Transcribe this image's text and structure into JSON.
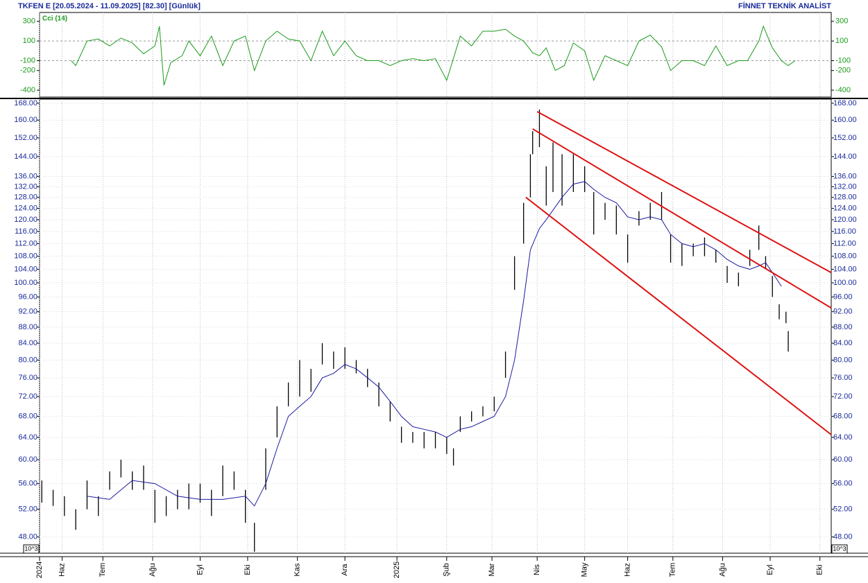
{
  "header": {
    "title": "TKFEN E  [20.05.2024 - 11.09.2025]  [82.30]  [Günlük]",
    "brand": "FİNNET TEKNİK ANALİST"
  },
  "chart_data": [
    {
      "type": "line",
      "title": "Cci (14)",
      "color": "#1a9a1a",
      "x": [
        14,
        16,
        21,
        26,
        31,
        36,
        41,
        46,
        51,
        53,
        55,
        58,
        63,
        66,
        71,
        76,
        81,
        86,
        91,
        95,
        100,
        105,
        110,
        115,
        120,
        125,
        130,
        135,
        140,
        145,
        150,
        155,
        160,
        165,
        170,
        175,
        180,
        186,
        191,
        196,
        201,
        206,
        210,
        214,
        218,
        221,
        224,
        228,
        232,
        236,
        241,
        245,
        250,
        255,
        260,
        265,
        270,
        275,
        279,
        284,
        289,
        294,
        299,
        304,
        309,
        313,
        318,
        320,
        324,
        328,
        331,
        334
      ],
      "values": [
        -100,
        -150,
        100,
        120,
        50,
        130,
        80,
        -30,
        50,
        250,
        -350,
        -120,
        -50,
        100,
        -50,
        150,
        -150,
        100,
        150,
        -200,
        100,
        200,
        120,
        100,
        -100,
        200,
        -50,
        100,
        -50,
        -100,
        -100,
        -150,
        -100,
        -80,
        -100,
        -80,
        -300,
        150,
        50,
        200,
        200,
        220,
        150,
        100,
        -20,
        -50,
        30,
        -200,
        -150,
        80,
        0,
        -300,
        -50,
        -100,
        -150,
        100,
        160,
        40,
        -200,
        -100,
        -100,
        -150,
        50,
        -150,
        -100,
        -100,
        100,
        250,
        30,
        -100,
        -150,
        -100
      ],
      "xlim": [
        0,
        350
      ],
      "ylim": [
        -470,
        390
      ],
      "yticks": [
        300,
        100,
        -100,
        -200,
        -400
      ],
      "dashed_grid": [
        100,
        -100
      ]
    },
    {
      "type": "range",
      "log_scale": true,
      "unit_label": "10^3",
      "color": "#000000",
      "xlim": [
        0,
        350
      ],
      "ylim": [
        45.8,
        170
      ],
      "xticks": [
        {
          "value": 0,
          "label": "2024"
        },
        {
          "value": 10,
          "label": "Haz"
        },
        {
          "value": 28,
          "label": "Tem"
        },
        {
          "value": 50,
          "label": "Ağu"
        },
        {
          "value": 71,
          "label": "Eyl"
        },
        {
          "value": 92,
          "label": "Eki"
        },
        {
          "value": 114,
          "label": "Kas"
        },
        {
          "value": 135,
          "label": "Ara"
        },
        {
          "value": 158,
          "label": "2025"
        },
        {
          "value": 180,
          "label": "Şub"
        },
        {
          "value": 200,
          "label": "Mar"
        },
        {
          "value": 220,
          "label": "Nis"
        },
        {
          "value": 241,
          "label": "May"
        },
        {
          "value": 260,
          "label": "Haz"
        },
        {
          "value": 280,
          "label": "Tem"
        },
        {
          "value": 302,
          "label": "Ağu"
        },
        {
          "value": 323,
          "label": "Eyl"
        },
        {
          "value": 345,
          "label": "Eki"
        }
      ],
      "yticks": [
        {
          "value": 48,
          "label": "48.00"
        },
        {
          "value": 52,
          "label": "52.00"
        },
        {
          "value": 56,
          "label": "56.00"
        },
        {
          "value": 60,
          "label": "60.00"
        },
        {
          "value": 64,
          "label": "64.00"
        },
        {
          "value": 68,
          "label": "68.00"
        },
        {
          "value": 72,
          "label": "72.00"
        },
        {
          "value": 76,
          "label": "76.00"
        },
        {
          "value": 80,
          "label": "80.00"
        },
        {
          "value": 84,
          "label": "84.00"
        },
        {
          "value": 88,
          "label": "88.00"
        },
        {
          "value": 92,
          "label": "92.00"
        },
        {
          "value": 96,
          "label": "96.00"
        },
        {
          "value": 100,
          "label": "100.00"
        },
        {
          "value": 104,
          "label": "104.00"
        },
        {
          "value": 108,
          "label": "108.00"
        },
        {
          "value": 112,
          "label": "112.00"
        },
        {
          "value": 116,
          "label": "116.00"
        },
        {
          "value": 120,
          "label": "120.00"
        },
        {
          "value": 124,
          "label": "124.00"
        },
        {
          "value": 128,
          "label": "128.00"
        },
        {
          "value": 132,
          "label": "132.00"
        },
        {
          "value": 136,
          "label": "136.00"
        },
        {
          "value": 144,
          "label": "144.00"
        },
        {
          "value": 152,
          "label": "152.00"
        },
        {
          "value": 160,
          "label": "160.00"
        },
        {
          "value": 168,
          "label": "168.00"
        }
      ],
      "x": [
        1,
        6,
        11,
        16,
        21,
        26,
        31,
        36,
        41,
        46,
        51,
        56,
        61,
        66,
        71,
        76,
        81,
        86,
        91,
        95,
        100,
        105,
        110,
        115,
        120,
        125,
        130,
        135,
        140,
        145,
        150,
        155,
        160,
        165,
        170,
        175,
        180,
        183,
        186,
        191,
        196,
        201,
        206,
        210,
        214,
        217,
        218,
        221,
        224,
        227,
        231,
        236,
        241,
        245,
        250,
        255,
        260,
        265,
        270,
        275,
        279,
        284,
        289,
        294,
        299,
        304,
        309,
        314,
        318,
        321,
        324,
        327,
        330,
        331
      ],
      "high": [
        56.5,
        55,
        54,
        52,
        56.5,
        54,
        58,
        60,
        58,
        59,
        55,
        54,
        55,
        56,
        56,
        55,
        59,
        58,
        55,
        50,
        62,
        70,
        75,
        80,
        78,
        84,
        82,
        83,
        80,
        78,
        75,
        71,
        66,
        65,
        65,
        65,
        64,
        62,
        68,
        69,
        70,
        72,
        82,
        108,
        126,
        145,
        155,
        165,
        140,
        150,
        145,
        145,
        140,
        130,
        126,
        125,
        115,
        123,
        126,
        130,
        115,
        112,
        112,
        114,
        110,
        105,
        103,
        110,
        118,
        108,
        102,
        94,
        92,
        87
      ],
      "low": [
        53,
        52.5,
        51,
        49,
        52,
        51,
        55,
        57,
        55,
        55,
        50,
        51,
        52,
        52,
        53,
        51,
        54,
        55,
        50,
        46,
        55,
        64,
        70,
        72,
        73,
        79,
        78,
        78,
        77,
        74,
        70,
        67,
        63,
        63,
        62,
        62,
        61,
        59,
        65,
        67,
        68,
        69,
        76,
        98,
        112,
        128,
        145,
        148,
        125,
        130,
        125,
        130,
        130,
        115,
        120,
        115,
        106,
        118,
        120,
        120,
        106,
        105,
        108,
        108,
        106,
        100,
        99,
        105,
        110,
        104,
        96,
        90,
        89,
        82
      ],
      "ma": {
        "color": "#1a1aa0",
        "x": [
          21,
          31,
          36,
          41,
          51,
          61,
          71,
          81,
          91,
          95,
          100,
          105,
          110,
          115,
          120,
          125,
          130,
          135,
          140,
          145,
          150,
          155,
          160,
          165,
          170,
          175,
          180,
          186,
          191,
          196,
          201,
          206,
          210,
          214,
          217,
          221,
          224,
          231,
          236,
          241,
          245,
          250,
          255,
          260,
          265,
          270,
          275,
          279,
          284,
          289,
          294,
          299,
          304,
          309,
          314,
          318,
          321,
          324,
          328
        ],
        "values": [
          54,
          53.5,
          55,
          56.5,
          56,
          54,
          53.5,
          53.5,
          54,
          52.5,
          56,
          62,
          68,
          70,
          72,
          76,
          77,
          79,
          78,
          76,
          74,
          71,
          68,
          66,
          65.5,
          65,
          64,
          65.5,
          66,
          67,
          68,
          72,
          80,
          95,
          110,
          117,
          120,
          128,
          133,
          134,
          131,
          128,
          126,
          121,
          120,
          121,
          120,
          115,
          112,
          111,
          112,
          110,
          107,
          105,
          104,
          105,
          106,
          103,
          99
        ]
      },
      "trend_color": "#dd1111",
      "trendlines": [
        {
          "x": [
            220,
            350
          ],
          "values": [
            164,
            103
          ]
        },
        {
          "x": [
            218,
            350
          ],
          "values": [
            156,
            93
          ]
        },
        {
          "x": [
            215,
            350
          ],
          "values": [
            128,
            64.5
          ]
        }
      ]
    }
  ]
}
